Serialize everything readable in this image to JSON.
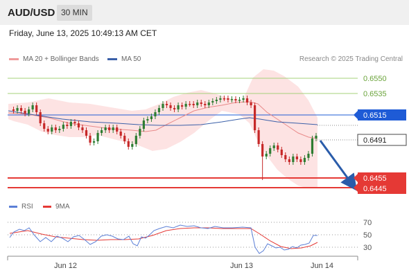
{
  "header": {
    "pair": "AUD/USD",
    "timeframe": "30 MIN"
  },
  "datetime": "Friday, June 13, 2025 10:49:13 AM CET",
  "legend": {
    "ma20": "MA 20 + Bollinger Bands",
    "ma50": "MA 50",
    "credit": "Research © 2025 Trading Central"
  },
  "levels": {
    "r2": "0.6550",
    "r1": "0.6535",
    "pivot": "0.6515",
    "last": "0.6491",
    "s1": "0.6455",
    "s2": "0.6445"
  },
  "rsi_legend": {
    "rsi": "RSI",
    "ma9": "9MA"
  },
  "rsi_axis": [
    "70",
    "50",
    "30"
  ],
  "xaxis": [
    "Jun 12",
    "Jun 13",
    "Jun 14"
  ],
  "colors": {
    "bull": "#2e7d32",
    "bear": "#c62828",
    "ma50": "#3a5fa8",
    "ma20": "#e88a8a",
    "band": "#fde3e3",
    "support": "#e53935",
    "pivot": "#1e5bd6",
    "resistance": "#a5d07a"
  }
}
